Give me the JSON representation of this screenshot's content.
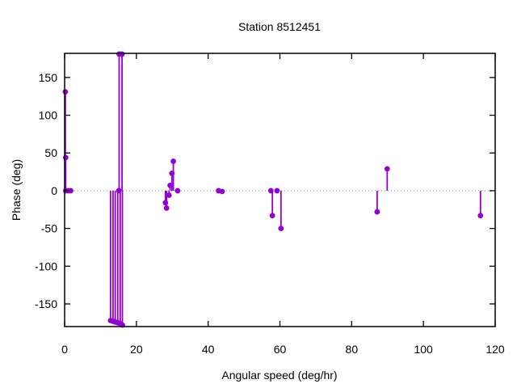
{
  "chart_data": {
    "type": "scatter",
    "style": "impulses+points",
    "title": "Station 8512451",
    "xlabel": "Angular speed (deg/hr)",
    "ylabel": "Phase (deg)",
    "xlim": [
      0,
      120
    ],
    "ylim": [
      -180,
      182
    ],
    "xticks": [
      0,
      20,
      40,
      60,
      80,
      100,
      120
    ],
    "yticks": [
      -150,
      -100,
      -50,
      0,
      50,
      100,
      150
    ],
    "grid": "off",
    "legend": "none",
    "zero_line": true,
    "series_color": "#9400d3",
    "zero_line_color": "#808080",
    "border_color": "#000000",
    "points": [
      {
        "x": 0.2,
        "y": 131
      },
      {
        "x": 0.3,
        "y": 44
      },
      {
        "x": 0.3,
        "y": 0
      },
      {
        "x": 1.0,
        "y": 0
      },
      {
        "x": 1.7,
        "y": 0
      },
      {
        "x": 12.8,
        "y": -172
      },
      {
        "x": 13.5,
        "y": -173
      },
      {
        "x": 14.1,
        "y": -174
      },
      {
        "x": 14.8,
        "y": -175
      },
      {
        "x": 15.5,
        "y": -176
      },
      {
        "x": 16.1,
        "y": -178
      },
      {
        "x": 15.2,
        "y": 181
      },
      {
        "x": 16.0,
        "y": 181
      },
      {
        "x": 15.1,
        "y": 0
      },
      {
        "x": 28.1,
        "y": -16
      },
      {
        "x": 28.4,
        "y": -23
      },
      {
        "x": 29.1,
        "y": -6
      },
      {
        "x": 29.4,
        "y": 7
      },
      {
        "x": 29.9,
        "y": 23
      },
      {
        "x": 30.3,
        "y": 39
      },
      {
        "x": 31.5,
        "y": 0
      },
      {
        "x": 42.9,
        "y": 0
      },
      {
        "x": 43.9,
        "y": -1
      },
      {
        "x": 57.5,
        "y": 0
      },
      {
        "x": 57.9,
        "y": -33
      },
      {
        "x": 59.2,
        "y": 0
      },
      {
        "x": 60.3,
        "y": -50
      },
      {
        "x": 87.1,
        "y": -28
      },
      {
        "x": 89.9,
        "y": 29
      },
      {
        "x": 115.9,
        "y": -33
      }
    ]
  }
}
